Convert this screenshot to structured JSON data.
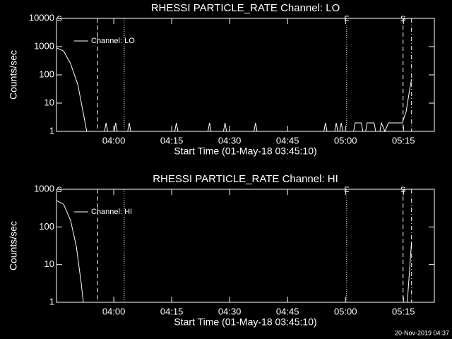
{
  "chart_data": [
    {
      "type": "line",
      "title": "RHESSI PARTICLE_RATE Channel: LO",
      "xlabel": "Start Time (01-May-18 03:45:10)",
      "ylabel": "Counts/sec",
      "log_y": true,
      "ylim": [
        1,
        10000
      ],
      "yticks": [
        1,
        10,
        100,
        1000,
        10000
      ],
      "xlim": [
        225.17,
        323
      ],
      "xticks": [
        {
          "value": 240,
          "label": "04:00"
        },
        {
          "value": 255,
          "label": "04:15"
        },
        {
          "value": 270,
          "label": "04:30"
        },
        {
          "value": 285,
          "label": "04:45"
        },
        {
          "value": 300,
          "label": "05:00"
        },
        {
          "value": 315,
          "label": "05:15"
        }
      ],
      "series": [
        {
          "name": "Channel: LO",
          "color": "#ffffff",
          "x": [
            225.2,
            227.0,
            228.8,
            230.7,
            232.1,
            233.0,
            237.6,
            238.0,
            238.4,
            240.1,
            240.5,
            240.9,
            243.6,
            244.0,
            244.4,
            255.8,
            256.2,
            256.6,
            264.4,
            264.8,
            265.2,
            268.4,
            268.8,
            269.2,
            276.3,
            276.7,
            277.1,
            294.4,
            294.8,
            295.2,
            297.2,
            297.6,
            298.0,
            298.5,
            298.9,
            299.3,
            302.1,
            302.5,
            304.1,
            304.5,
            305.2,
            305.6,
            307.4,
            307.8,
            308.9,
            309.3,
            310.2,
            311.1,
            314.7,
            315.7,
            316.6,
            317.1
          ],
          "values": [
            900,
            700,
            250,
            45,
            4.5,
            1,
            1,
            2,
            1,
            1,
            2,
            1,
            1,
            2,
            1,
            1,
            2,
            1,
            1,
            2,
            1,
            1,
            2,
            1,
            1,
            2,
            1,
            1,
            2,
            1,
            1,
            2,
            1,
            1,
            2,
            1,
            1,
            2,
            2,
            1,
            1,
            2,
            2,
            1,
            1,
            2,
            1,
            2,
            2,
            5,
            30,
            70
          ]
        }
      ],
      "vlines": [
        {
          "x": 235.8,
          "style": "dashed"
        },
        {
          "x": 242.7,
          "style": "dotted"
        },
        {
          "x": 300.3,
          "style": "dotted"
        },
        {
          "x": 314.9,
          "style": "dashed"
        },
        {
          "x": 317.1,
          "style": "dashdot"
        }
      ],
      "flags": [
        {
          "x": 225.9,
          "label": "S"
        },
        {
          "x": 300.3,
          "label": "E"
        },
        {
          "x": 314.9,
          "label": "S"
        }
      ]
    },
    {
      "type": "line",
      "title": "RHESSI PARTICLE_RATE Channel: HI",
      "xlabel": "Start Time (01-May-18 03:45:10)",
      "ylabel": "Counts/sec",
      "log_y": true,
      "ylim": [
        1,
        1000
      ],
      "yticks": [
        1,
        10,
        100,
        1000
      ],
      "xlim": [
        225.17,
        323
      ],
      "xticks": [
        {
          "value": 240,
          "label": "04:00"
        },
        {
          "value": 255,
          "label": "04:15"
        },
        {
          "value": 270,
          "label": "04:30"
        },
        {
          "value": 285,
          "label": "04:45"
        },
        {
          "value": 300,
          "label": "05:00"
        },
        {
          "value": 315,
          "label": "05:15"
        }
      ],
      "series": [
        {
          "name": "Channel: HI",
          "color": "#ffffff",
          "x": [
            225.2,
            227.0,
            228.8,
            230.3,
            231.6,
            232.1,
            316.0,
            317.1
          ],
          "values": [
            500,
            400,
            150,
            30,
            3,
            1,
            1,
            40
          ]
        }
      ],
      "vlines": [
        {
          "x": 235.8,
          "style": "dashed"
        },
        {
          "x": 242.7,
          "style": "dotted"
        },
        {
          "x": 300.3,
          "style": "dotted"
        },
        {
          "x": 314.9,
          "style": "dashed"
        },
        {
          "x": 317.1,
          "style": "dashdot"
        }
      ],
      "flags": [
        {
          "x": 225.9,
          "label": "S"
        },
        {
          "x": 300.3,
          "label": "E"
        },
        {
          "x": 314.9,
          "label": "S"
        }
      ]
    }
  ],
  "timestamp": "20-Nov-2019 04:37"
}
